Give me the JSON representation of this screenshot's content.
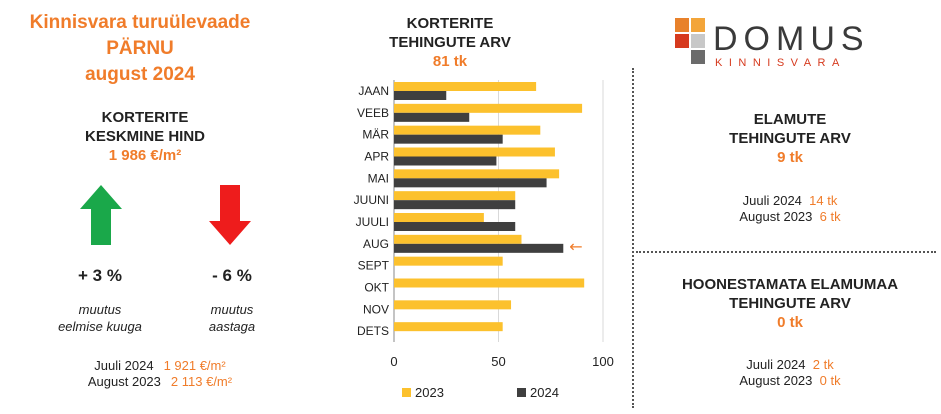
{
  "header": {
    "title_line1": "Kinnisvara turuülevaade",
    "title_line2": "PÄRNU",
    "title_line3": "august 2024"
  },
  "avg_price": {
    "label_line1": "KORTERITE",
    "label_line2": "KESKMINE HIND",
    "value": "1 986 €/m²"
  },
  "changes": {
    "monthly": {
      "value": "+ 3 %",
      "label_line1": "muutus",
      "label_line2": "eelmise kuuga",
      "direction": "up",
      "color": "#1aa84a"
    },
    "yearly": {
      "value": "- 6 %",
      "label_line1": "muutus",
      "label_line2": "aastaga",
      "direction": "down",
      "color": "#ee1c1c"
    }
  },
  "avg_compare": [
    {
      "label": "Juuli 2024",
      "value": "1 921 €/m²"
    },
    {
      "label": "August 2023",
      "value": "2 113 €/m²"
    }
  ],
  "chart_header": {
    "line1": "KORTERITE",
    "line2": "TEHINGUTE ARV",
    "value": "81 tk"
  },
  "logo": {
    "name": "DOMUS",
    "sub": "KINNISVARA"
  },
  "elamute": {
    "line1": "ELAMUTE",
    "line2": "TEHINGUTE ARV",
    "value": "9 tk",
    "compare": [
      {
        "label": "Juuli 2024",
        "value": "14 tk"
      },
      {
        "label": "August 2023",
        "value": "6 tk"
      }
    ]
  },
  "elamumaa": {
    "line1": "HOONESTAMATA ELAMUMAA",
    "line2": "TEHINGUTE ARV",
    "value": "0 tk",
    "compare": [
      {
        "label": "Juuli 2024",
        "value": "2 tk"
      },
      {
        "label": "August 2023",
        "value": "0 tk"
      }
    ]
  },
  "colors": {
    "accent": "#f07c2a",
    "series_2023": "#fcc12d",
    "series_2024": "#3f3f3f"
  },
  "chart_data": {
    "type": "bar",
    "orientation": "horizontal",
    "categories": [
      "JAAN",
      "VEEB",
      "MÄR",
      "APR",
      "MAI",
      "JUUNI",
      "JUULI",
      "AUG",
      "SEPT",
      "OKT",
      "NOV",
      "DETS"
    ],
    "series": [
      {
        "name": "2023",
        "values": [
          68,
          90,
          70,
          77,
          79,
          58,
          43,
          61,
          52,
          91,
          56,
          52
        ]
      },
      {
        "name": "2024",
        "values": [
          25,
          36,
          52,
          49,
          73,
          58,
          58,
          81,
          null,
          null,
          null,
          null
        ]
      }
    ],
    "xlim": [
      0,
      100
    ],
    "xticks": [
      0,
      50,
      100
    ],
    "annotation": {
      "category": "AUG",
      "symbol": "←"
    },
    "legend_position": "bottom",
    "grid": true
  }
}
